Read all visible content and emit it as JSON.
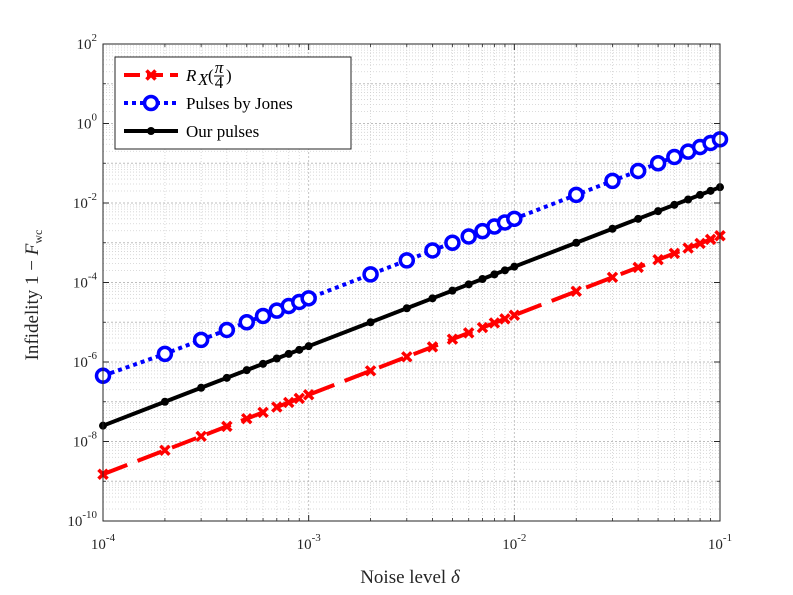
{
  "chart_data": {
    "type": "line",
    "xscale": "log",
    "yscale": "log",
    "xlim": [
      0.0001,
      0.1
    ],
    "ylim": [
      1e-10,
      100
    ],
    "grid": true,
    "xlabel_text": "Noise level",
    "xlabel_symbol": "δ",
    "ylabel_text": "Infidelity 1 −",
    "ylabel_symbol": "F",
    "ylabel_subscript": "wc",
    "x_ticks": [
      {
        "value": 0.0001,
        "base": "10",
        "exp": "-4"
      },
      {
        "value": 0.001,
        "base": "10",
        "exp": "-3"
      },
      {
        "value": 0.01,
        "base": "10",
        "exp": "-2"
      },
      {
        "value": 0.1,
        "base": "10",
        "exp": "-1"
      }
    ],
    "y_ticks": [
      {
        "value": 1e-10,
        "base": "10",
        "exp": "-10"
      },
      {
        "value": 1e-08,
        "base": "10",
        "exp": "-8"
      },
      {
        "value": 1e-06,
        "base": "10",
        "exp": "-6"
      },
      {
        "value": 0.0001,
        "base": "10",
        "exp": "-4"
      },
      {
        "value": 0.01,
        "base": "10",
        "exp": "-2"
      },
      {
        "value": 1,
        "base": "10",
        "exp": "0"
      },
      {
        "value": 100,
        "base": "10",
        "exp": "2"
      }
    ],
    "x": [
      0.0001,
      0.0002,
      0.0003,
      0.0004,
      0.0005,
      0.0006,
      0.0007,
      0.0008,
      0.0009,
      0.001,
      0.002,
      0.003,
      0.004,
      0.005,
      0.006,
      0.007,
      0.008,
      0.009,
      0.01,
      0.02,
      0.03,
      0.04,
      0.05,
      0.06,
      0.07,
      0.08,
      0.09,
      0.1
    ],
    "series": [
      {
        "name": "Pulses by Jones",
        "color": "#0000ff",
        "style": "dotted",
        "marker": "circle",
        "y": [
          4.5e-07,
          1.6e-06,
          3.6e-06,
          6.4e-06,
          1e-05,
          1.44e-05,
          1.96e-05,
          2.56e-05,
          3.24e-05,
          4e-05,
          0.00016,
          0.00036,
          0.00064,
          0.001,
          0.00144,
          0.00196,
          0.00256,
          0.00324,
          0.004,
          0.016,
          0.036,
          0.064,
          0.1,
          0.144,
          0.196,
          0.256,
          0.324,
          0.4
        ]
      },
      {
        "name": "Our pulses",
        "color": "#000000",
        "style": "solid",
        "marker": "dot",
        "y": [
          2.5e-08,
          1e-07,
          2.25e-07,
          4e-07,
          6.25e-07,
          9e-07,
          1.225e-06,
          1.6e-06,
          2.025e-06,
          2.5e-06,
          1e-05,
          2.25e-05,
          4e-05,
          6.25e-05,
          9e-05,
          0.0001225,
          0.00016,
          0.0002025,
          0.00025,
          0.001,
          0.00225,
          0.004,
          0.00625,
          0.009,
          0.01225,
          0.016,
          0.02025,
          0.025
        ]
      },
      {
        "name": "R_X(π/4)",
        "color": "#ff0000",
        "style": "dashed",
        "marker": "x",
        "y": [
          1.5e-09,
          6e-09,
          1.35e-08,
          2.4e-08,
          3.75e-08,
          5.4e-08,
          7.35e-08,
          9.6e-08,
          1.215e-07,
          1.5e-07,
          6e-07,
          1.35e-06,
          2.4e-06,
          3.75e-06,
          5.4e-06,
          7.35e-06,
          9.6e-06,
          1.215e-05,
          1.5e-05,
          6e-05,
          0.000135,
          0.00024,
          0.000375,
          0.00054,
          0.000735,
          0.00096,
          0.001215,
          0.0015
        ]
      }
    ],
    "legend": {
      "placement": "top-left",
      "entries": [
        {
          "series": "R_X(π/4)",
          "main": "R",
          "sub": "X",
          "frac_num": "π",
          "frac_den": "4"
        },
        {
          "series": "Pulses by Jones",
          "label": "Pulses by Jones"
        },
        {
          "series": "Our pulses",
          "label": "Our pulses"
        }
      ]
    }
  }
}
